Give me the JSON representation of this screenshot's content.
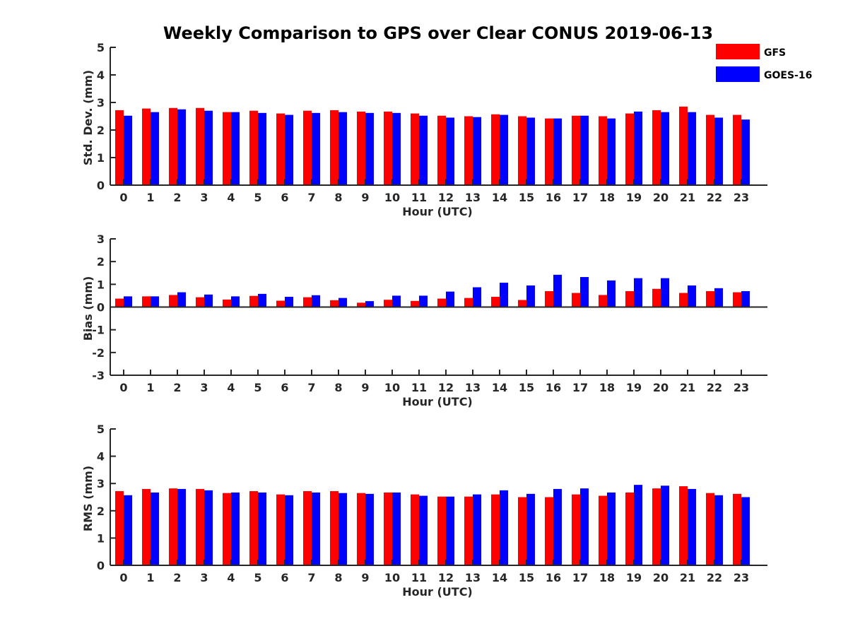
{
  "figure_title": "Weekly Comparison to GPS over Clear CONUS 2019-06-13",
  "legend": [
    {
      "name": "GFS",
      "color": "#ff0000"
    },
    {
      "name": "GOES-16",
      "color": "#0000ff"
    }
  ],
  "chart_data": [
    {
      "type": "bar",
      "title": "Weekly Comparison to GPS over Clear CONUS 2019-06-13",
      "xlabel": "Hour (UTC)",
      "ylabel": "Std. Dev. (mm)",
      "ylim": [
        0,
        5
      ],
      "yticks": [
        "0",
        "1",
        "2",
        "3",
        "4",
        "5"
      ],
      "categories": [
        "0",
        "1",
        "2",
        "3",
        "4",
        "5",
        "6",
        "7",
        "8",
        "9",
        "10",
        "11",
        "12",
        "13",
        "14",
        "15",
        "16",
        "17",
        "18",
        "19",
        "20",
        "21",
        "22",
        "23"
      ],
      "series": [
        {
          "name": "GFS",
          "color": "#ff0000",
          "values": [
            2.72,
            2.78,
            2.8,
            2.8,
            2.65,
            2.7,
            2.6,
            2.7,
            2.72,
            2.67,
            2.67,
            2.6,
            2.52,
            2.5,
            2.57,
            2.5,
            2.42,
            2.52,
            2.5,
            2.6,
            2.72,
            2.85,
            2.55,
            2.55
          ]
        },
        {
          "name": "GOES-16",
          "color": "#0000ff",
          "values": [
            2.52,
            2.65,
            2.75,
            2.7,
            2.65,
            2.62,
            2.55,
            2.62,
            2.65,
            2.62,
            2.62,
            2.52,
            2.45,
            2.47,
            2.55,
            2.45,
            2.42,
            2.52,
            2.42,
            2.67,
            2.65,
            2.65,
            2.45,
            2.38
          ]
        }
      ],
      "legend": "top-right",
      "grid": false
    },
    {
      "type": "bar",
      "xlabel": "Hour (UTC)",
      "ylabel": "Bias (mm)",
      "ylim": [
        -3,
        3
      ],
      "yticks": [
        "-3",
        "-2",
        "-1",
        "0",
        "1",
        "2",
        "3"
      ],
      "categories": [
        "0",
        "1",
        "2",
        "3",
        "4",
        "5",
        "6",
        "7",
        "8",
        "9",
        "10",
        "11",
        "12",
        "13",
        "14",
        "15",
        "16",
        "17",
        "18",
        "19",
        "20",
        "21",
        "22",
        "23"
      ],
      "series": [
        {
          "name": "GFS",
          "color": "#ff0000",
          "values": [
            0.37,
            0.47,
            0.53,
            0.43,
            0.33,
            0.49,
            0.28,
            0.43,
            0.3,
            0.19,
            0.32,
            0.27,
            0.37,
            0.4,
            0.45,
            0.31,
            0.7,
            0.62,
            0.53,
            0.7,
            0.8,
            0.62,
            0.7,
            0.65
          ]
        },
        {
          "name": "GOES-16",
          "color": "#0000ff",
          "values": [
            0.47,
            0.47,
            0.65,
            0.55,
            0.47,
            0.58,
            0.45,
            0.52,
            0.4,
            0.26,
            0.5,
            0.5,
            0.68,
            0.87,
            1.07,
            0.95,
            1.42,
            1.32,
            1.17,
            1.27,
            1.27,
            0.95,
            0.83,
            0.7
          ]
        }
      ],
      "grid": false
    },
    {
      "type": "bar",
      "xlabel": "Hour (UTC)",
      "ylabel": "RMS (mm)",
      "ylim": [
        0,
        5
      ],
      "yticks": [
        "0",
        "1",
        "2",
        "3",
        "4",
        "5"
      ],
      "categories": [
        "0",
        "1",
        "2",
        "3",
        "4",
        "5",
        "6",
        "7",
        "8",
        "9",
        "10",
        "11",
        "12",
        "13",
        "14",
        "15",
        "16",
        "17",
        "18",
        "19",
        "20",
        "21",
        "22",
        "23"
      ],
      "series": [
        {
          "name": "GFS",
          "color": "#ff0000",
          "values": [
            2.72,
            2.8,
            2.82,
            2.8,
            2.65,
            2.72,
            2.6,
            2.72,
            2.72,
            2.65,
            2.67,
            2.6,
            2.52,
            2.52,
            2.6,
            2.5,
            2.5,
            2.6,
            2.55,
            2.67,
            2.82,
            2.9,
            2.65,
            2.62
          ]
        },
        {
          "name": "GOES-16",
          "color": "#0000ff",
          "values": [
            2.57,
            2.67,
            2.8,
            2.75,
            2.67,
            2.67,
            2.57,
            2.67,
            2.65,
            2.62,
            2.67,
            2.55,
            2.52,
            2.6,
            2.75,
            2.62,
            2.8,
            2.82,
            2.67,
            2.95,
            2.92,
            2.8,
            2.57,
            2.5
          ]
        }
      ],
      "grid": false
    }
  ]
}
